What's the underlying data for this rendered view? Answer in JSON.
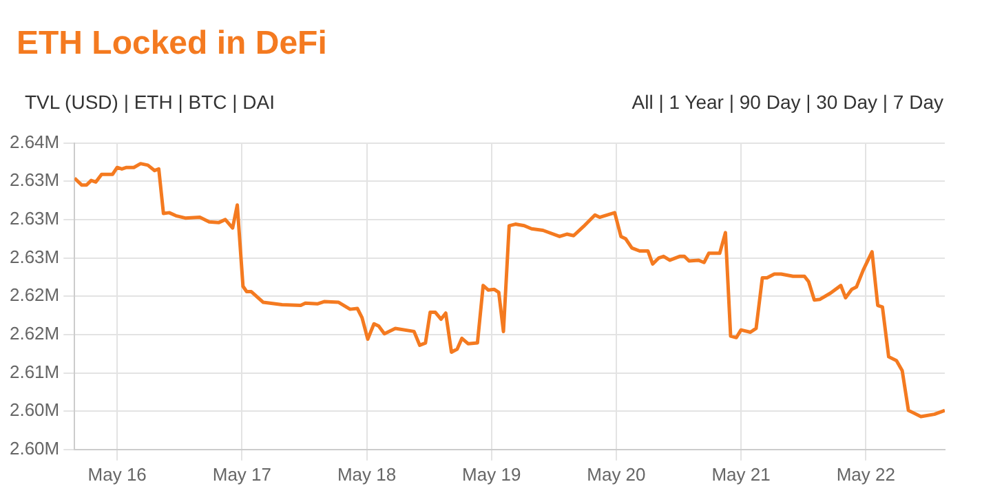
{
  "chart_data": {
    "type": "line",
    "title": "ETH Locked in DeFi",
    "annotations": [
      "TVL (USD) | ETH | BTC | DAI",
      "All | 1 Year | 90 Day | 30 Day | 7 Day"
    ],
    "x": [
      "--05-15T15:48",
      "--05-15T17:12",
      "--05-15T18:06",
      "--05-15T19:00",
      "--05-15T19:54",
      "--05-15T21:00",
      "--05-15T23:06",
      "--05-16T00:00",
      "--05-16T00:54",
      "--05-16T01:48",
      "--05-16T03:12",
      "--05-16T04:30",
      "--05-16T05:54",
      "--05-16T07:12",
      "--05-16T08:00",
      "--05-16T08:54",
      "--05-16T10:00",
      "--05-16T11:18",
      "--05-16T13:06",
      "--05-16T15:54",
      "--05-16T17:42",
      "--05-16T19:30",
      "--05-16T20:48",
      "--05-16T22:12",
      "--05-16T23:06",
      "--05-17T00:12",
      "--05-17T00:54",
      "--05-17T01:48",
      "--05-17T04:06",
      "--05-17T07:42",
      "--05-17T11:18",
      "--05-17T12:12",
      "--05-17T14:30",
      "--05-17T15:54",
      "--05-17T18:36",
      "--05-17T20:48",
      "--05-17T22:12",
      "--05-17T23:06",
      "--05-18T00:12",
      "--05-18T01:24",
      "--05-18T02:18",
      "--05-18T03:24",
      "--05-18T05:30",
      "--05-18T09:06",
      "--05-18T10:12",
      "--05-18T11:18",
      "--05-18T12:12",
      "--05-18T13:12",
      "--05-18T14:18",
      "--05-18T15:12",
      "--05-18T16:18",
      "--05-18T17:24",
      "--05-18T18:18",
      "--05-18T19:30",
      "--05-18T21:18",
      "--05-18T22:24",
      "--05-18T23:24",
      "--05-19T00:30",
      "--05-19T01:24",
      "--05-19T02:18",
      "--05-19T03:24",
      "--05-19T04:36",
      "--05-19T06:18",
      "--05-19T07:42",
      "--05-19T09:54",
      "--05-19T13:06",
      "--05-19T14:30",
      "--05-19T15:48",
      "--05-19T17:42",
      "--05-19T19:54",
      "--05-19T20:48",
      "--05-19T23:42",
      "--05-20T00:54",
      "--05-20T01:48",
      "--05-20T03:00",
      "--05-20T04:30",
      "--05-20T06:06",
      "--05-20T07:00",
      "--05-20T08:12",
      "--05-20T09:06",
      "--05-20T10:18",
      "--05-20T12:12",
      "--05-20T13:06",
      "--05-20T14:00",
      "--05-20T15:48",
      "--05-20T16:54",
      "--05-20T17:48",
      "--05-20T19:54",
      "--05-20T21:00",
      "--05-20T22:00",
      "--05-20T23:06",
      "--05-21T00:00",
      "--05-21T01:48",
      "--05-21T02:54",
      "--05-21T04:06",
      "--05-21T05:00",
      "--05-21T06:24",
      "--05-21T07:42",
      "--05-21T10:00",
      "--05-21T12:12",
      "--05-21T13:00",
      "--05-21T14:06",
      "--05-21T15:12",
      "--05-21T17:12",
      "--05-21T19:12",
      "--05-21T20:06",
      "--05-21T21:18",
      "--05-21T22:12",
      "--05-21T23:30",
      "--05-22T01:12",
      "--05-22T02:18",
      "--05-22T03:12",
      "--05-22T04:24",
      "--05-22T05:54",
      "--05-22T07:00",
      "--05-22T08:12",
      "--05-22T09:06",
      "--05-22T10:36",
      "--05-22T13:12",
      "--05-22T15:12"
    ],
    "values": [
      2.6354,
      2.6345,
      2.6345,
      2.6351,
      2.6349,
      2.6359,
      2.6359,
      2.6368,
      2.6366,
      2.6368,
      2.6368,
      2.6373,
      2.6371,
      2.6364,
      2.6366,
      2.6308,
      2.6309,
      2.6305,
      2.6302,
      2.6303,
      2.6297,
      2.6296,
      2.63,
      2.6289,
      2.6319,
      2.6213,
      2.6206,
      2.6206,
      2.6192,
      2.6189,
      2.6188,
      2.6191,
      2.619,
      2.6193,
      2.6192,
      2.6183,
      2.6184,
      2.6172,
      2.6144,
      2.6164,
      2.6161,
      2.6151,
      2.6158,
      2.6154,
      2.6136,
      2.6139,
      2.6179,
      2.6179,
      2.617,
      2.6178,
      2.6127,
      2.6131,
      2.6145,
      2.6138,
      2.6139,
      2.6214,
      2.6208,
      2.6209,
      2.6205,
      2.6154,
      2.6292,
      2.6294,
      2.6292,
      2.6288,
      2.6286,
      2.6278,
      2.6281,
      2.6279,
      2.6291,
      2.6306,
      2.6303,
      2.6309,
      2.6278,
      2.6275,
      2.6263,
      2.6259,
      2.6259,
      2.6242,
      2.625,
      2.6252,
      2.6247,
      2.6252,
      2.6252,
      2.6246,
      2.6247,
      2.6244,
      2.6256,
      2.6256,
      2.6283,
      2.6148,
      2.6146,
      2.6156,
      2.6153,
      2.6158,
      2.6224,
      2.6224,
      2.6229,
      2.6229,
      2.6226,
      2.6226,
      2.6219,
      2.6195,
      2.6196,
      2.6204,
      2.6214,
      2.6198,
      2.6209,
      2.6212,
      2.6234,
      2.6258,
      2.6188,
      2.6186,
      2.6121,
      2.6116,
      2.6103,
      2.6051,
      2.6048,
      2.6043,
      2.6046,
      2.6051
    ],
    "color": "#f47a20",
    "xlim": [
      "--05-15T15:48",
      "--05-22T15:12"
    ],
    "xticks": [
      {
        "value": "--05-16",
        "label": "May 16"
      },
      {
        "value": "--05-17",
        "label": "May 17"
      },
      {
        "value": "--05-18",
        "label": "May 18"
      },
      {
        "value": "--05-19",
        "label": "May 19"
      },
      {
        "value": "--05-20",
        "label": "May 20"
      },
      {
        "value": "--05-21",
        "label": "May 21"
      },
      {
        "value": "--05-22",
        "label": "May 22"
      }
    ],
    "ylim": [
      2.6,
      2.64
    ],
    "yticks": [
      {
        "value": 2.6,
        "label": "2.60M"
      },
      {
        "value": 2.605,
        "label": "2.60M"
      },
      {
        "value": 2.61,
        "label": "2.61M"
      },
      {
        "value": 2.615,
        "label": "2.62M"
      },
      {
        "value": 2.62,
        "label": "2.62M"
      },
      {
        "value": 2.625,
        "label": "2.63M"
      },
      {
        "value": 2.63,
        "label": "2.63M"
      },
      {
        "value": 2.635,
        "label": "2.63M"
      },
      {
        "value": 2.64,
        "label": "2.64M"
      }
    ],
    "grid": true,
    "legend": false,
    "marker": "none",
    "line_style": "solid"
  }
}
